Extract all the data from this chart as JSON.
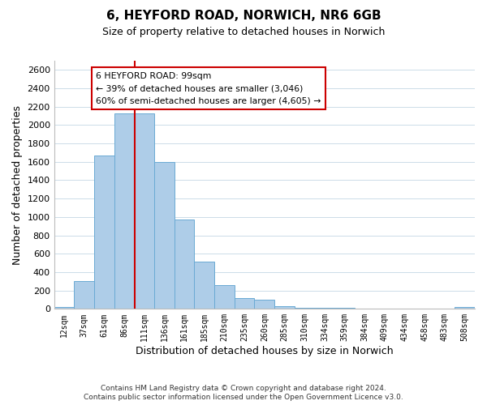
{
  "title": "6, HEYFORD ROAD, NORWICH, NR6 6GB",
  "subtitle": "Size of property relative to detached houses in Norwich",
  "xlabel": "Distribution of detached houses by size in Norwich",
  "ylabel": "Number of detached properties",
  "bin_labels": [
    "12sqm",
    "37sqm",
    "61sqm",
    "86sqm",
    "111sqm",
    "136sqm",
    "161sqm",
    "185sqm",
    "210sqm",
    "235sqm",
    "260sqm",
    "285sqm",
    "310sqm",
    "334sqm",
    "359sqm",
    "384sqm",
    "409sqm",
    "434sqm",
    "458sqm",
    "483sqm",
    "508sqm"
  ],
  "bar_values": [
    20,
    300,
    1670,
    2130,
    2130,
    1600,
    970,
    510,
    255,
    120,
    100,
    30,
    10,
    10,
    10,
    5,
    5,
    5,
    5,
    5,
    20
  ],
  "bar_color": "#aecde8",
  "bar_edge_color": "#6aaad4",
  "property_line_color": "#cc0000",
  "annotation_title": "6 HEYFORD ROAD: 99sqm",
  "annotation_line1": "← 39% of detached houses are smaller (3,046)",
  "annotation_line2": "60% of semi-detached houses are larger (4,605) →",
  "annotation_box_color": "#ffffff",
  "annotation_box_edge": "#cc0000",
  "ylim": [
    0,
    2700
  ],
  "yticks": [
    0,
    200,
    400,
    600,
    800,
    1000,
    1200,
    1400,
    1600,
    1800,
    2000,
    2200,
    2400,
    2600
  ],
  "footer1": "Contains HM Land Registry data © Crown copyright and database right 2024.",
  "footer2": "Contains public sector information licensed under the Open Government Licence v3.0.",
  "background_color": "#ffffff",
  "grid_color": "#ccdce8"
}
